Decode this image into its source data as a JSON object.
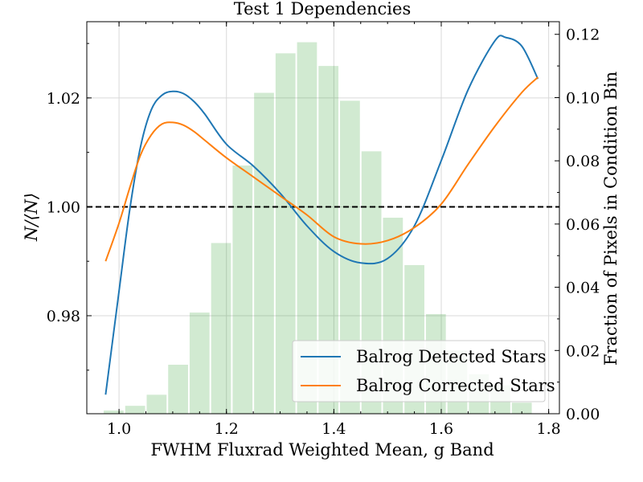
{
  "chart_data": {
    "type": "line",
    "title": "Test 1 Dependencies",
    "xlabel": "FWHM Fluxrad Weighted Mean, g Band",
    "ylabel": "N/⟨N⟩",
    "y2label": "Fraction of Pixels in Condition Bin",
    "xlim": [
      0.94,
      1.82
    ],
    "ylim": [
      0.962,
      1.034
    ],
    "y2lim": [
      0.0,
      0.124
    ],
    "xticks": [
      1.0,
      1.2,
      1.4,
      1.6,
      1.8
    ],
    "xtick_labels": [
      "1.0",
      "1.2",
      "1.4",
      "1.6",
      "1.8"
    ],
    "yticks": [
      0.98,
      1.0,
      1.02
    ],
    "ytick_labels": [
      "0.98",
      "1.00",
      "1.02"
    ],
    "y2ticks": [
      0.0,
      0.02,
      0.04,
      0.06,
      0.08,
      0.1,
      0.12
    ],
    "y2tick_labels": [
      "0.00",
      "0.02",
      "0.04",
      "0.06",
      "0.08",
      "0.10",
      "0.12"
    ],
    "grid": true,
    "legend_position": "lower-right",
    "reference_line": {
      "y": 1.0,
      "style": "dashed",
      "color": "#000000"
    },
    "histogram": {
      "axis": "right",
      "color": "#2ca02c",
      "opacity": 0.22,
      "bin_width": 0.04,
      "centers": [
        0.99,
        1.03,
        1.07,
        1.11,
        1.15,
        1.19,
        1.23,
        1.27,
        1.31,
        1.35,
        1.39,
        1.43,
        1.47,
        1.51,
        1.55,
        1.59,
        1.63,
        1.67,
        1.71,
        1.75
      ],
      "values": [
        0.001,
        0.0025,
        0.006,
        0.0155,
        0.032,
        0.054,
        0.0785,
        0.1015,
        0.114,
        0.1175,
        0.11,
        0.099,
        0.083,
        0.062,
        0.047,
        0.0315,
        0.02,
        0.0125,
        0.009,
        0.0035
      ]
    },
    "series": [
      {
        "name": "Balrog Detected Stars",
        "color": "#1f77b4",
        "x": [
          0.975,
          1.0,
          1.02,
          1.04,
          1.06,
          1.08,
          1.1,
          1.12,
          1.14,
          1.16,
          1.2,
          1.25,
          1.3,
          1.35,
          1.4,
          1.45,
          1.5,
          1.55,
          1.6,
          1.65,
          1.7,
          1.72,
          1.75,
          1.78
        ],
        "y": [
          0.9655,
          0.9845,
          0.9995,
          1.011,
          1.0178,
          1.0205,
          1.0212,
          1.0208,
          1.0193,
          1.017,
          1.0115,
          1.0075,
          1.0025,
          0.9965,
          0.9918,
          0.9897,
          0.9905,
          0.9965,
          1.0085,
          1.0215,
          1.0305,
          1.0311,
          1.0295,
          1.0235
        ]
      },
      {
        "name": "Balrog Corrected Stars",
        "color": "#ff7f0e",
        "x": [
          0.975,
          1.0,
          1.02,
          1.04,
          1.06,
          1.08,
          1.1,
          1.12,
          1.14,
          1.16,
          1.2,
          1.25,
          1.3,
          1.35,
          1.4,
          1.45,
          1.5,
          1.55,
          1.6,
          1.65,
          1.7,
          1.75,
          1.78
        ],
        "y": [
          0.99,
          0.997,
          1.0035,
          1.0095,
          1.0132,
          1.0152,
          1.0155,
          1.015,
          1.0138,
          1.0122,
          1.009,
          1.0055,
          1.002,
          0.9985,
          0.9945,
          0.9932,
          0.9938,
          0.9962,
          1.0005,
          1.0078,
          1.0148,
          1.021,
          1.0238
        ]
      }
    ]
  }
}
